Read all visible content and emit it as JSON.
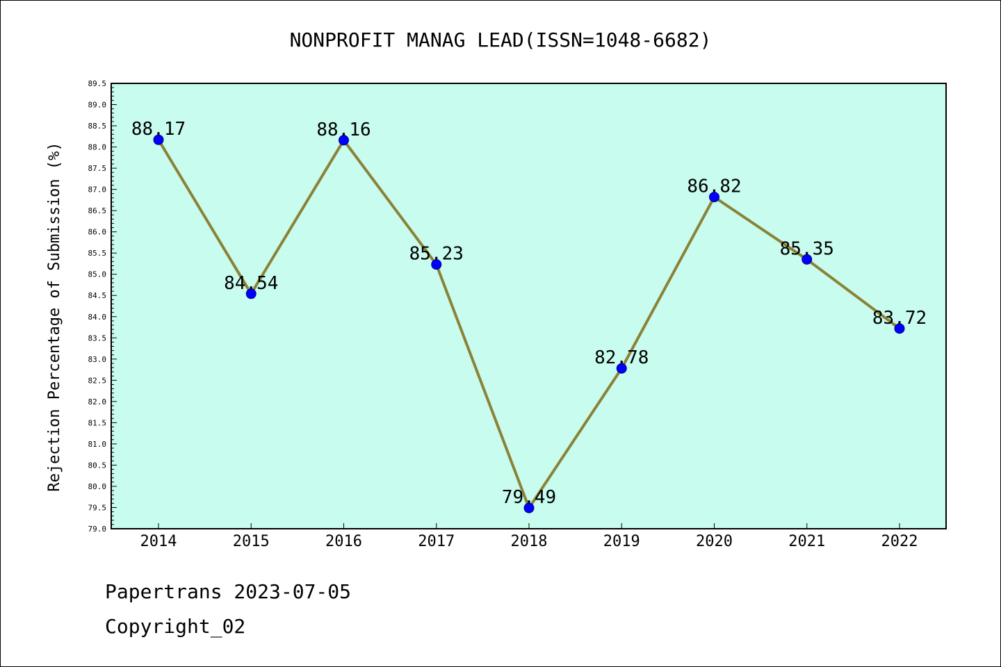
{
  "chart_data": {
    "type": "line",
    "title": "NONPROFIT MANAG LEAD(ISSN=1048-6682)",
    "xlabel": "",
    "ylabel": "Rejection Percentage of Submission (%)",
    "categories": [
      "2014",
      "2015",
      "2016",
      "2017",
      "2018",
      "2019",
      "2020",
      "2021",
      "2022"
    ],
    "values": [
      88.17,
      84.54,
      88.16,
      85.23,
      79.49,
      82.78,
      86.82,
      85.35,
      83.72
    ],
    "data_labels": [
      "88.17",
      "84.54",
      "88.16",
      "85.23",
      "79.49",
      "82.78",
      "86.82",
      "85.35",
      "83.72"
    ],
    "ylim": [
      79.0,
      89.5
    ],
    "y_ticks": [
      "79.0",
      "79.5",
      "80.0",
      "80.5",
      "81.0",
      "81.5",
      "82.0",
      "82.5",
      "83.0",
      "83.5",
      "84.0",
      "84.5",
      "85.0",
      "85.5",
      "86.0",
      "86.5",
      "87.0",
      "87.5",
      "88.0",
      "88.5",
      "89.0",
      "89.5"
    ],
    "grid": false,
    "legend": "none",
    "colors": {
      "plot_background": "#c8fcee",
      "line": "#8b8238",
      "marker": "#0000ff"
    }
  },
  "footer": {
    "line1": "Papertrans 2023-07-05",
    "line2": "Copyright_02"
  }
}
